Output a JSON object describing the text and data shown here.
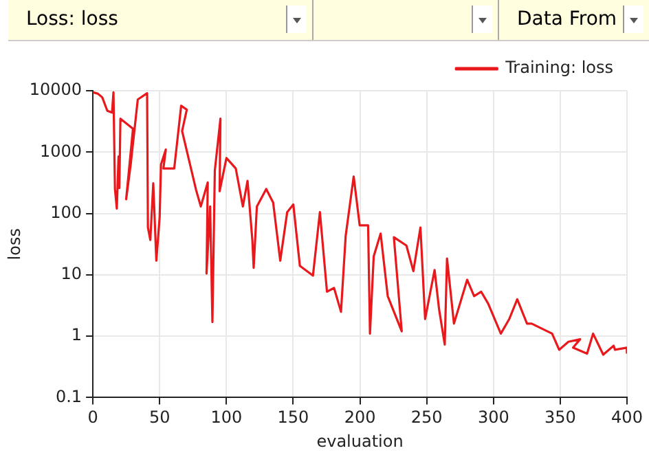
{
  "chart_data": {
    "type": "line",
    "title": "Loss: loss",
    "annotations": [
      "Data From"
    ],
    "xlabel": "evaluation",
    "ylabel": "loss",
    "log": "y",
    "grid": true,
    "legend": "top right",
    "marker": "none",
    "line_style": "solid",
    "xlim": [
      0,
      400
    ],
    "xticks": [
      0,
      50,
      100,
      150,
      200,
      250,
      300,
      350,
      400
    ],
    "ylim": [
      0.1,
      10000
    ],
    "yticks": [
      0.1,
      1,
      10,
      100,
      1000,
      10000
    ],
    "series": [
      {
        "name": "Training: loss",
        "color": "#e8191c",
        "x": [
          0,
          3.5,
          7,
          10.8,
          14.3,
          15.4,
          16.5,
          17.9,
          19.2,
          19.8,
          20.6,
          30,
          24.9,
          28.3,
          33.6,
          40.6,
          41.2,
          43,
          45.2,
          47.5,
          50,
          51,
          54.6,
          52.8,
          60.9,
          66.1,
          70.3,
          66.8,
          77.3,
          80.8,
          86,
          85.1,
          87.8,
          89.5,
          91.3,
          94.2,
          95.5,
          94.9,
          100,
          107,
          112.3,
          115.8,
          119.4,
          120.4,
          122.8,
          129.8,
          135,
          140.3,
          145.5,
          150.1,
          155,
          164.8,
          170,
          175.3,
          180.6,
          185.8,
          189.3,
          195.3,
          199.8,
          206.1,
          207.5,
          210.3,
          215.5,
          220.8,
          231.3,
          225.4,
          234.8,
          240,
          245.3,
          248.8,
          255.9,
          259.3,
          263.5,
          265.2,
          270.4,
          280.3,
          285.5,
          290.8,
          296,
          305.5,
          311.8,
          317.8,
          325.1,
          328.6,
          343.9,
          349.2,
          356.1,
          364.9,
          359.6,
          370.1,
          374.6,
          382.2,
          390,
          391,
          399.8,
          400
        ],
        "values": [
          9400,
          9000,
          7800,
          4700,
          4400,
          9400,
          250,
          120,
          850,
          260,
          3500,
          2400,
          170,
          630,
          7200,
          9100,
          59,
          37,
          310,
          17,
          88,
          630,
          1100,
          540,
          540,
          5700,
          4900,
          2200,
          240,
          130,
          320,
          10.5,
          130,
          1.7,
          500,
          1900,
          3500,
          230,
          800,
          540,
          130,
          340,
          37,
          13,
          130,
          250,
          150,
          17,
          105,
          140,
          14,
          9.7,
          105,
          5.3,
          6.1,
          2.5,
          43,
          400,
          64,
          64,
          1.1,
          20,
          47,
          4.5,
          1.2,
          41,
          30,
          11.5,
          59,
          1.9,
          12,
          2.7,
          0.73,
          18.5,
          1.6,
          8.3,
          4.5,
          5.3,
          3.4,
          1.1,
          1.9,
          4,
          1.6,
          1.6,
          1.1,
          0.6,
          0.81,
          0.89,
          0.65,
          0.52,
          1.1,
          0.5,
          0.7,
          0.6,
          0.65,
          0.52
        ]
      }
    ]
  }
}
